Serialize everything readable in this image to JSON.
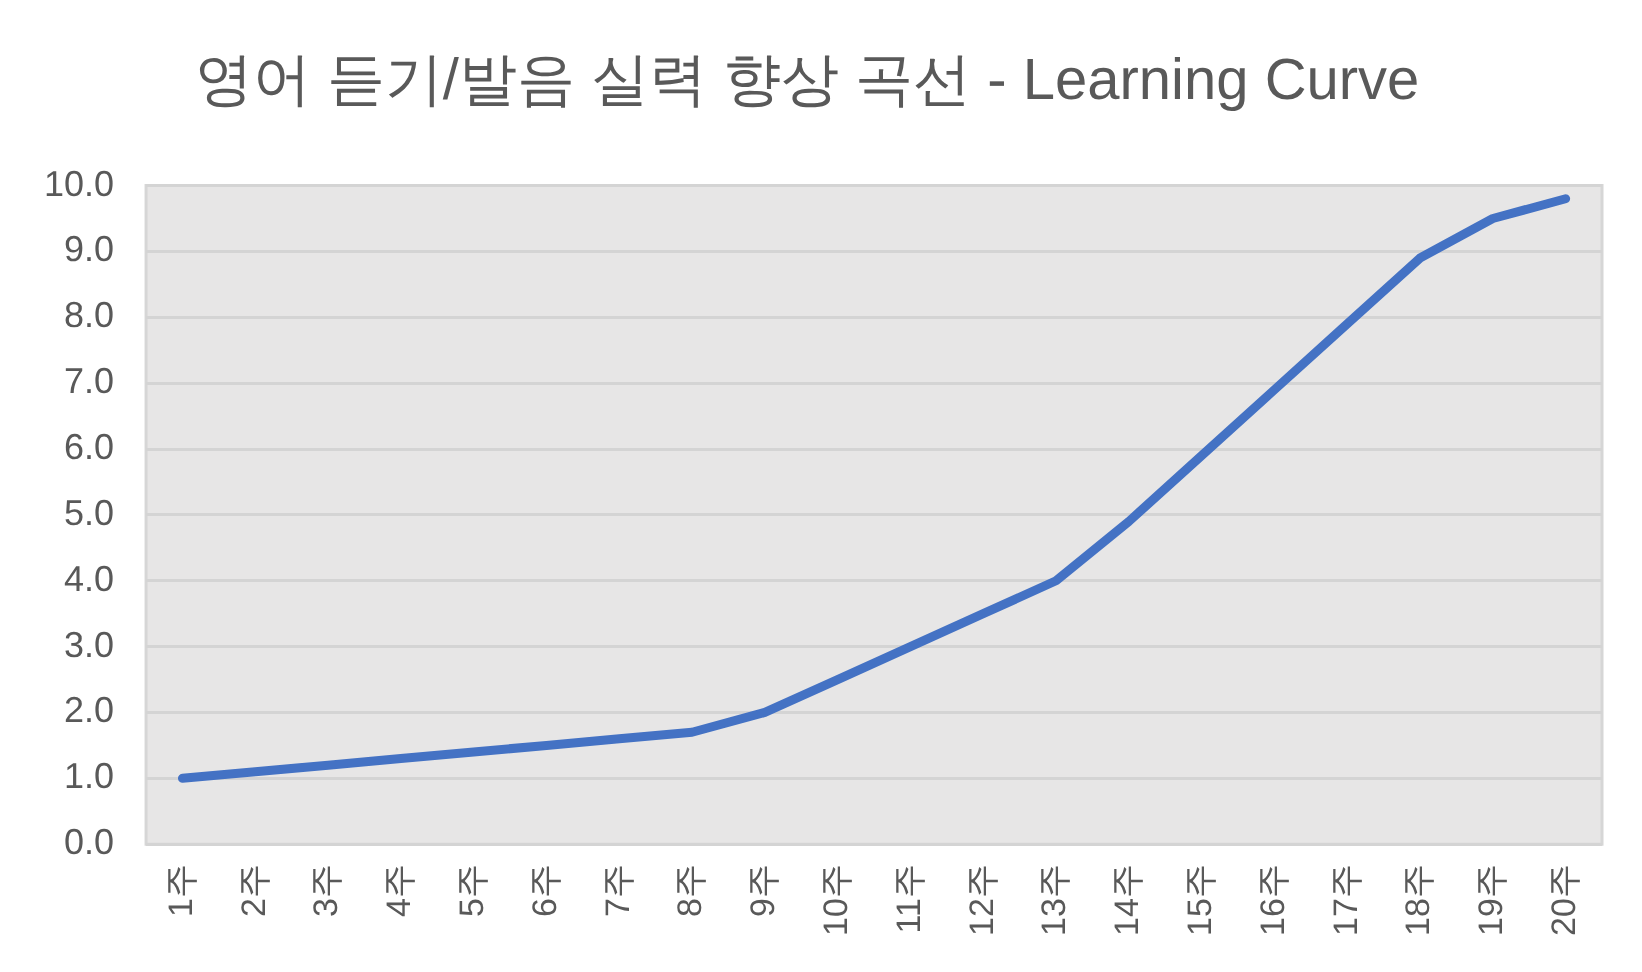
{
  "chart_data": {
    "type": "line",
    "title": "영어 듣기/발음 실력 향상 곡선 - Learning Curve",
    "categories": [
      "1주",
      "2주",
      "3주",
      "4주",
      "5주",
      "6주",
      "7주",
      "8주",
      "9주",
      "10주",
      "11주",
      "12주",
      "13주",
      "14주",
      "15주",
      "16주",
      "17주",
      "18주",
      "19주",
      "20주"
    ],
    "series": [
      {
        "color": "#4472c4",
        "values": [
          1.0,
          1.1,
          1.2,
          1.3,
          1.4,
          1.5,
          1.6,
          1.7,
          2.0,
          2.5,
          3.0,
          3.5,
          4.0,
          4.9,
          5.9,
          6.9,
          7.9,
          8.9,
          9.5,
          9.8
        ]
      }
    ],
    "ylim": [
      0,
      10
    ],
    "yticks": [
      {
        "value": 0,
        "label": "0.0"
      },
      {
        "value": 1,
        "label": "1.0"
      },
      {
        "value": 2,
        "label": "2.0"
      },
      {
        "value": 3,
        "label": "3.0"
      },
      {
        "value": 4,
        "label": "4.0"
      },
      {
        "value": 5,
        "label": "5.0"
      },
      {
        "value": 6,
        "label": "6.0"
      },
      {
        "value": 7,
        "label": "7.0"
      },
      {
        "value": 8,
        "label": "8.0"
      },
      {
        "value": 9,
        "label": "9.0"
      },
      {
        "value": 10,
        "label": "10.0"
      }
    ],
    "grid": "y",
    "marker": "none",
    "line_style": "solid"
  }
}
